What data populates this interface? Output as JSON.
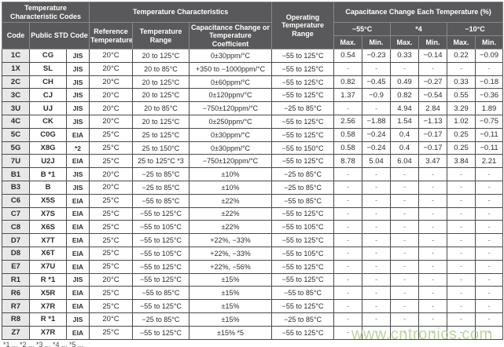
{
  "colors": {
    "header_bg": "#59595b",
    "header_text": "#ffffff",
    "code_column_bg": "#e8e8e9",
    "grid_border": "#4a4a4c",
    "watermark_green": "#b6d290"
  },
  "header": {
    "temp_char_codes": "Temperature Characteristic Codes",
    "temp_characteristics": "Temperature Characteristics",
    "operating_temp_range": "Operating Temperature Range",
    "cap_change_each_temp": "Capacitance Change Each Temperature (%)",
    "code": "Code",
    "public_std_code": "Public STD Code",
    "reference_temperature": "Reference Temperature",
    "temperature_range": "Temperature Range",
    "cap_change_or_coeff": "Capacitance Change or Temperature Coefficient",
    "temp_groups": [
      "−55°C",
      "*4",
      "−10°C"
    ],
    "max_label": "Max.",
    "min_label": "Min."
  },
  "rows": [
    {
      "code": "1C",
      "public_std_code": "CG",
      "std_org": "JIS",
      "reference_temperature": "20°C",
      "temperature_range": "20 to 125°C",
      "capacitance_change": "0±30ppm/°C",
      "operating_temperature_range": "−55 to 125°C",
      "values": [
        "0.54",
        "−0.23",
        "0.33",
        "−0.14",
        "0.22",
        "−0.09"
      ]
    },
    {
      "code": "1X",
      "public_std_code": "SL",
      "std_org": "JIS",
      "reference_temperature": "20°C",
      "temperature_range": "20 to 85°C",
      "capacitance_change": "+350 to −1000ppm/°C",
      "operating_temperature_range": "−55 to 125°C",
      "values": [
        "-",
        "-",
        "-",
        "-",
        "-",
        "-"
      ]
    },
    {
      "code": "2C",
      "public_std_code": "CH",
      "std_org": "JIS",
      "reference_temperature": "20°C",
      "temperature_range": "20 to 125°C",
      "capacitance_change": "0±60ppm/°C",
      "operating_temperature_range": "−55 to 125°C",
      "values": [
        "0.82",
        "−0.45",
        "0.49",
        "−0.27",
        "0.33",
        "−0.18"
      ]
    },
    {
      "code": "3C",
      "public_std_code": "CJ",
      "std_org": "JIS",
      "reference_temperature": "20°C",
      "temperature_range": "20 to 125°C",
      "capacitance_change": "0±120ppm/°C",
      "operating_temperature_range": "−55 to 125°C",
      "values": [
        "1.37",
        "−0.9",
        "0.82",
        "−0.54",
        "0.55",
        "−0.36"
      ]
    },
    {
      "code": "3U",
      "public_std_code": "UJ",
      "std_org": "JIS",
      "reference_temperature": "20°C",
      "temperature_range": "20 to 85°C",
      "capacitance_change": "−750±120ppm/°C",
      "operating_temperature_range": "−25 to 85°C",
      "values": [
        "-",
        "-",
        "4.94",
        "2.84",
        "3.29",
        "1.89"
      ]
    },
    {
      "code": "4C",
      "public_std_code": "CK",
      "std_org": "JIS",
      "reference_temperature": "20°C",
      "temperature_range": "20 to 125°C",
      "capacitance_change": "0±250ppm/°C",
      "operating_temperature_range": "−55 to 125°C",
      "values": [
        "2.56",
        "−1.88",
        "1.54",
        "−1.13",
        "1.02",
        "−0.75"
      ]
    },
    {
      "code": "5C",
      "public_std_code": "C0G",
      "std_org": "EIA",
      "reference_temperature": "25°C",
      "temperature_range": "25 to 125°C",
      "capacitance_change": "0±30ppm/°C",
      "operating_temperature_range": "−55 to 125°C",
      "values": [
        "0.58",
        "−0.24",
        "0.4",
        "−0.17",
        "0.25",
        "−0.11"
      ]
    },
    {
      "code": "5G",
      "public_std_code": "X8G",
      "std_org": "*2",
      "reference_temperature": "25°C",
      "temperature_range": "25 to 150°C",
      "capacitance_change": "0±30ppm/°C",
      "operating_temperature_range": "−55 to 150°C",
      "values": [
        "0.58",
        "−0.24",
        "0.4",
        "−0.17",
        "0.25",
        "−0.11"
      ]
    },
    {
      "code": "7U",
      "public_std_code": "U2J",
      "std_org": "EIA",
      "reference_temperature": "25°C",
      "temperature_range": "25 to 125°C *3",
      "capacitance_change": "−750±120ppm/°C",
      "operating_temperature_range": "−55 to 125°C",
      "values": [
        "8.78",
        "5.04",
        "6.04",
        "3.47",
        "3.84",
        "2.21"
      ]
    },
    {
      "code": "B1",
      "public_std_code": "B *1",
      "std_org": "JIS",
      "reference_temperature": "20°C",
      "temperature_range": "−25 to 85°C",
      "capacitance_change": "±10%",
      "operating_temperature_range": "−25 to 85°C",
      "values": [
        "-",
        "-",
        "-",
        "-",
        "-",
        "-"
      ]
    },
    {
      "code": "B3",
      "public_std_code": "B",
      "std_org": "JIS",
      "reference_temperature": "20°C",
      "temperature_range": "−25 to 85°C",
      "capacitance_change": "±10%",
      "operating_temperature_range": "−25 to 85°C",
      "values": [
        "-",
        "-",
        "-",
        "-",
        "-",
        "-"
      ]
    },
    {
      "code": "C6",
      "public_std_code": "X5S",
      "std_org": "EIA",
      "reference_temperature": "25°C",
      "temperature_range": "−55 to 85°C",
      "capacitance_change": "±22%",
      "operating_temperature_range": "−55 to 85°C",
      "values": [
        "-",
        "-",
        "-",
        "-",
        "-",
        "-"
      ]
    },
    {
      "code": "C7",
      "public_std_code": "X7S",
      "std_org": "EIA",
      "reference_temperature": "25°C",
      "temperature_range": "−55 to 125°C",
      "capacitance_change": "±22%",
      "operating_temperature_range": "−55 to 125°C",
      "values": [
        "-",
        "-",
        "-",
        "-",
        "-",
        "-"
      ]
    },
    {
      "code": "C8",
      "public_std_code": "X6S",
      "std_org": "EIA",
      "reference_temperature": "25°C",
      "temperature_range": "−55 to 105°C",
      "capacitance_change": "±22%",
      "operating_temperature_range": "−55 to 105°C",
      "values": [
        "-",
        "-",
        "-",
        "-",
        "-",
        "-"
      ]
    },
    {
      "code": "D7",
      "public_std_code": "X7T",
      "std_org": "EIA",
      "reference_temperature": "25°C",
      "temperature_range": "−55 to 125°C",
      "capacitance_change": "+22%, −33%",
      "operating_temperature_range": "−55 to 125°C",
      "values": [
        "-",
        "-",
        "-",
        "-",
        "-",
        "-"
      ]
    },
    {
      "code": "D8",
      "public_std_code": "X6T",
      "std_org": "EIA",
      "reference_temperature": "25°C",
      "temperature_range": "−55 to 105°C",
      "capacitance_change": "+22%, −33%",
      "operating_temperature_range": "−55 to 105°C",
      "values": [
        "-",
        "-",
        "-",
        "-",
        "-",
        "-"
      ]
    },
    {
      "code": "E7",
      "public_std_code": "X7U",
      "std_org": "EIA",
      "reference_temperature": "25°C",
      "temperature_range": "−55 to 125°C",
      "capacitance_change": "+22%, −56%",
      "operating_temperature_range": "−55 to 125°C",
      "values": [
        "-",
        "-",
        "-",
        "-",
        "-",
        "-"
      ]
    },
    {
      "code": "R1",
      "public_std_code": "R *1",
      "std_org": "JIS",
      "reference_temperature": "20°C",
      "temperature_range": "−55 to 125°C",
      "capacitance_change": "±15%",
      "operating_temperature_range": "−55 to 125°C",
      "values": [
        "-",
        "-",
        "-",
        "-",
        "-",
        "-"
      ]
    },
    {
      "code": "R6",
      "public_std_code": "X5R",
      "std_org": "EIA",
      "reference_temperature": "25°C",
      "temperature_range": "−55 to 85°C",
      "capacitance_change": "±15%",
      "operating_temperature_range": "−55 to 85°C",
      "values": [
        "-",
        "-",
        "-",
        "-",
        "-",
        "-"
      ]
    },
    {
      "code": "R7",
      "public_std_code": "X7R",
      "std_org": "EIA",
      "reference_temperature": "25°C",
      "temperature_range": "−55 to 125°C",
      "capacitance_change": "±15%",
      "operating_temperature_range": "−55 to 125°C",
      "values": [
        "-",
        "-",
        "-",
        "-",
        "-",
        "-"
      ]
    },
    {
      "code": "R8",
      "public_std_code": "R *1",
      "std_org": "JIS",
      "reference_temperature": "20°C",
      "temperature_range": "−25 to 85°C",
      "capacitance_change": "±15%",
      "operating_temperature_range": "−25 to 85°C",
      "values": [
        "-",
        "-",
        "-",
        "-",
        "-",
        "-"
      ]
    },
    {
      "code": "Z7",
      "public_std_code": "X7R",
      "std_org": "EIA",
      "reference_temperature": "25°C",
      "temperature_range": "−55 to 125°C",
      "capacitance_change": "±15% *5",
      "operating_temperature_range": "−55 to 125°C",
      "values": [
        "-",
        "-",
        "-",
        "-",
        "-",
        "-"
      ]
    }
  ],
  "footnote": "*1 ...   *2 ...   *3 ...   *4 ...   *5 ...",
  "watermark": "www.cntronics.com"
}
